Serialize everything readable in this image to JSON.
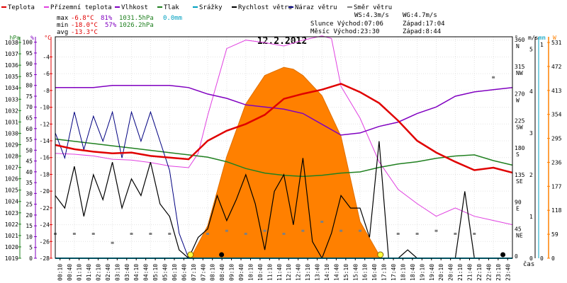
{
  "chart_data": {
    "type": "line",
    "title": "12.2.2012",
    "xlabel": "čas",
    "legend": [
      {
        "name": "Teplota",
        "color": "#e00000"
      },
      {
        "name": "Přízemní teplota",
        "color": "#e040e0"
      },
      {
        "name": "Vlhkost",
        "color": "#8000c0"
      },
      {
        "name": "Tlak",
        "color": "#208020"
      },
      {
        "name": "Srážky",
        "color": "#00a0c0"
      },
      {
        "name": "Rychlost větru",
        "color": "#000000"
      },
      {
        "name": "Náraz větru",
        "color": "#000080"
      },
      {
        "name": "Směr větru",
        "color": "#808080"
      }
    ],
    "stats": {
      "max": [
        "max",
        "-6.8°C",
        "81%",
        "1031.5hPa",
        "0.0mm"
      ],
      "min": [
        "min",
        "-18.0°C",
        "57%",
        "1026.2hPa"
      ],
      "avg": [
        "avg",
        "-13.3°C"
      ],
      "ws": "WS:4.3m/s",
      "wg": "WG:4.7m/s",
      "sun": "Slunce Východ:07:06",
      "sunset": "Západ:17:04",
      "moon": "Měsíc  Východ:23:30",
      "moonset": "Západ:8:44"
    },
    "x_ticks": [
      "00:10",
      "00:40",
      "01:10",
      "01:40",
      "02:10",
      "02:40",
      "03:10",
      "03:40",
      "04:10",
      "04:40",
      "05:10",
      "05:40",
      "06:10",
      "06:40",
      "07:10",
      "07:40",
      "08:10",
      "08:40",
      "09:10",
      "09:40",
      "10:10",
      "10:40",
      "11:10",
      "11:40",
      "12:10",
      "12:40",
      "13:10",
      "13:40",
      "14:10",
      "14:40",
      "15:10",
      "15:40",
      "16:10",
      "16:40",
      "17:10",
      "17:40",
      "18:10",
      "18:40",
      "19:10",
      "19:40",
      "20:10",
      "20:40",
      "21:10",
      "21:40",
      "22:10",
      "22:40",
      "23:10",
      "23:40"
    ],
    "axes": {
      "hpa": {
        "label": "hPa",
        "ticks": [
          1038,
          1037,
          1036,
          1035,
          1034,
          1033,
          1032,
          1031,
          1030,
          1029,
          1028,
          1027,
          1026,
          1025,
          1024,
          1023,
          1022,
          1021,
          1020,
          1019
        ],
        "range": [
          1019,
          1038.5
        ],
        "color": "#208020"
      },
      "humidity": {
        "label": "%",
        "ticks": [
          100,
          95,
          90,
          85,
          80,
          75,
          70,
          65,
          60,
          55,
          50,
          45,
          40,
          35,
          30,
          25,
          20,
          15,
          10,
          5,
          0
        ],
        "range": [
          0,
          102.5
        ],
        "color": "#8000c0"
      },
      "temp": {
        "label": "°C",
        "ticks": [
          -2,
          -4,
          -6,
          -8,
          -10,
          -12,
          -14,
          -16,
          -18,
          -20,
          -22,
          -24,
          -26,
          -28
        ],
        "range": [
          -28,
          -1.6
        ],
        "color": "#e00000"
      },
      "direction": {
        "label": "°",
        "ticks": [
          [
            "360",
            "N"
          ],
          [
            "315",
            "NW"
          ],
          [
            "270",
            "W"
          ],
          [
            "225",
            "SW"
          ],
          [
            "180",
            "S"
          ],
          [
            "135",
            "SE"
          ],
          [
            "90",
            "E"
          ],
          [
            "45",
            "NE"
          ],
          [
            "0",
            ""
          ]
        ],
        "range": [
          0,
          368
        ]
      },
      "wind": {
        "label": "m/s",
        "ticks": [
          "5",
          "4",
          "3",
          "2",
          "1",
          "0"
        ],
        "range": [
          0,
          5.3
        ],
        "color": "#000000"
      },
      "rain": {
        "label": "mm",
        "ticks": [
          "1",
          "0"
        ],
        "color": "#00a0c0"
      },
      "solar": {
        "label": "W",
        "ticks": [
          "531",
          "472",
          "413",
          "354",
          "295",
          "236",
          "177",
          "118",
          "59",
          "0"
        ],
        "range": [
          0,
          545
        ],
        "color": "#ff8000"
      }
    },
    "series": [
      {
        "name": "Teplota",
        "color": "#e00000",
        "unit": "°C",
        "x": [
          0,
          1,
          2,
          3,
          4,
          5,
          6,
          7,
          8,
          9,
          10,
          11,
          12,
          13,
          14,
          15,
          16,
          17,
          18,
          19,
          20,
          21,
          22,
          23,
          24
        ],
        "values": [
          -14.5,
          -15.0,
          -15.3,
          -15.5,
          -15.4,
          -15.8,
          -16.0,
          -16.2,
          -14.0,
          -12.8,
          -12.0,
          -10.9,
          -9.0,
          -8.4,
          -7.9,
          -7.2,
          -8.2,
          -9.5,
          -11.6,
          -14.0,
          -15.4,
          -16.5,
          -17.5,
          -17.2,
          -17.8
        ]
      },
      {
        "name": "Přízemní teplota",
        "color": "#e040e0",
        "unit": "°C",
        "x": [
          0,
          1,
          2,
          3,
          4,
          5,
          6,
          7,
          7.5,
          8,
          9,
          10,
          11,
          12,
          13,
          14,
          14.5,
          15,
          16,
          17,
          18,
          19,
          20,
          21,
          22,
          23,
          24
        ],
        "values": [
          -15.5,
          -15.6,
          -15.8,
          -16.2,
          -16.3,
          -16.6,
          -17.0,
          -17.2,
          -15.5,
          -11.0,
          -3.0,
          -2.0,
          -2.3,
          -2.7,
          -2.0,
          -1.5,
          -1.8,
          -7.5,
          -11.3,
          -16.5,
          -19.8,
          -21.5,
          -23.0,
          -22.0,
          -23.0,
          -23.5,
          -24.0
        ]
      },
      {
        "name": "Vlhkost",
        "color": "#8000c0",
        "unit": "%",
        "x": [
          0,
          1,
          2,
          3,
          4,
          5,
          6,
          7,
          8,
          9,
          10,
          11,
          12,
          13,
          14,
          15,
          16,
          17,
          18,
          19,
          20,
          21,
          22,
          23,
          24
        ],
        "values": [
          79,
          79,
          79,
          80,
          80,
          80,
          80,
          79,
          76,
          74,
          71,
          70,
          69,
          67,
          62,
          57,
          58,
          61,
          63,
          67,
          70,
          75,
          77,
          78,
          79
        ]
      },
      {
        "name": "Tlak",
        "color": "#208020",
        "unit": "hPa",
        "x": [
          0,
          1,
          2,
          3,
          4,
          5,
          6,
          7,
          8,
          9,
          10,
          11,
          12,
          13,
          14,
          15,
          16,
          17,
          18,
          19,
          20,
          21,
          22,
          23,
          24
        ],
        "values": [
          1029.5,
          1029.3,
          1029.1,
          1028.9,
          1028.7,
          1028.5,
          1028.3,
          1028.1,
          1027.9,
          1027.5,
          1026.9,
          1026.5,
          1026.3,
          1026.2,
          1026.3,
          1026.5,
          1026.6,
          1027.0,
          1027.3,
          1027.5,
          1027.8,
          1028.0,
          1028.1,
          1027.6,
          1027.2
        ]
      },
      {
        "name": "Srážky",
        "color": "#00a0c0",
        "unit": "mm",
        "x": [
          0,
          24
        ],
        "values": [
          0,
          0
        ]
      },
      {
        "name": "Rychlost větru",
        "color": "#000000",
        "unit": "m/s",
        "x": [
          0,
          0.5,
          1,
          1.5,
          2,
          2.5,
          3,
          3.5,
          4,
          4.5,
          5,
          5.5,
          6,
          6.5,
          7,
          7.5,
          8,
          8.5,
          9,
          9.5,
          10,
          10.5,
          11,
          11.5,
          12,
          12.5,
          13,
          13.5,
          14,
          14.5,
          15,
          15.5,
          16,
          16.5,
          17,
          17.5,
          18,
          18.5,
          19,
          19.5,
          20,
          20.5,
          21,
          21.5,
          22,
          22.5,
          23,
          23.5,
          24
        ],
        "values": [
          1.5,
          1.2,
          2.2,
          1.0,
          2.0,
          1.4,
          2.3,
          1.2,
          1.9,
          1.5,
          2.3,
          1.3,
          1.0,
          0.2,
          0.0,
          0.5,
          0.7,
          1.5,
          0.9,
          1.4,
          2.0,
          1.3,
          0.2,
          1.6,
          2.0,
          0.8,
          2.4,
          0.4,
          0.0,
          0.6,
          1.5,
          1.2,
          1.2,
          0.5,
          2.8,
          0.0,
          0.0,
          0.2,
          0.0,
          0.0,
          0.0,
          0.0,
          0.0,
          1.6,
          0.0,
          0.0,
          0.0,
          0.0,
          0.0
        ]
      },
      {
        "name": "Náraz větru",
        "color": "#000080",
        "unit": "m/s",
        "x": [
          0,
          0.5,
          1,
          1.5,
          2,
          2.5,
          3,
          3.5,
          4,
          4.5,
          5,
          5.5,
          6,
          6.5,
          7
        ],
        "values": [
          3.0,
          2.4,
          3.5,
          2.6,
          3.4,
          2.8,
          3.5,
          2.4,
          3.5,
          2.8,
          3.5,
          2.8,
          2.1,
          0.6,
          0.0
        ]
      },
      {
        "name": "Směr větru",
        "color": "#808080",
        "unit": "°",
        "x": [
          0,
          1,
          2,
          3,
          4,
          5,
          6,
          8,
          9,
          10,
          11,
          12,
          13,
          14,
          15,
          16,
          18,
          19,
          20,
          21,
          22,
          23
        ],
        "values": [
          40,
          40,
          40,
          25,
          40,
          40,
          40,
          40,
          45,
          40,
          45,
          40,
          45,
          60,
          45,
          45,
          40,
          40,
          45,
          40,
          40,
          300
        ]
      },
      {
        "name": "Sluneční záření",
        "color": "#ff8000",
        "unit": "W",
        "x": [
          7.1,
          8,
          9,
          10,
          11,
          12,
          12.5,
          13,
          14,
          15,
          16,
          17.1
        ],
        "values": [
          0,
          80,
          250,
          380,
          450,
          470,
          465,
          450,
          400,
          300,
          90,
          0
        ]
      }
    ]
  }
}
